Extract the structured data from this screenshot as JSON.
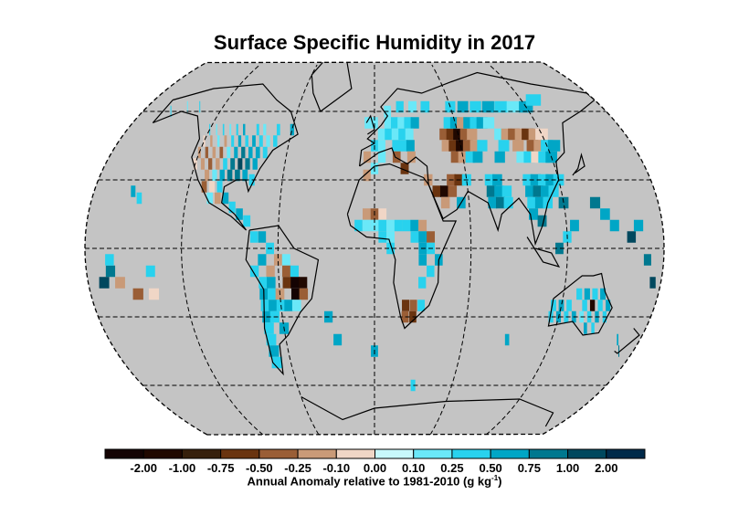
{
  "title": "Surface Specific Humidity in 2017",
  "colorbar": {
    "label": "Annual Anomaly relative to 1981-2010 (g kg",
    "unit_sup": "-1",
    "label_end": ")",
    "ticks": [
      "-2.00",
      "-1.00",
      "-0.75",
      "-0.50",
      "-0.25",
      "-0.10",
      "0.00",
      "0.10",
      "0.25",
      "0.50",
      "0.75",
      "1.00",
      "2.00"
    ],
    "colors": [
      "#140303",
      "#200800",
      "#36200c",
      "#6a3410",
      "#9a5e36",
      "#c99a78",
      "#f0d6c6",
      "#c8f8fb",
      "#6ae8f8",
      "#28d2ee",
      "#00a6c6",
      "#00788f",
      "#00485e",
      "#002a4a"
    ]
  },
  "map": {
    "background": "#c4c4c4",
    "gridlines_lon": [
      -120,
      -60,
      0,
      60,
      120
    ],
    "gridlines_lat": [
      -60,
      -30,
      0,
      30,
      60
    ],
    "cells": [
      [
        -120,
        52,
        0.25
      ],
      [
        -115,
        52,
        0.1
      ],
      [
        -110,
        52,
        0.25
      ],
      [
        -105,
        52,
        0.1
      ],
      [
        -100,
        52,
        0.25
      ],
      [
        -95,
        52,
        0.5
      ],
      [
        -85,
        52,
        0.25
      ],
      [
        -80,
        52,
        0.1
      ],
      [
        -70,
        52,
        0.25
      ],
      [
        -60,
        52,
        0.5
      ],
      [
        -120,
        47,
        -0.1
      ],
      [
        -115,
        47,
        -0.25
      ],
      [
        -110,
        47,
        0.1
      ],
      [
        -105,
        47,
        -0.25
      ],
      [
        -100,
        47,
        0.25
      ],
      [
        -95,
        47,
        0.5
      ],
      [
        -90,
        47,
        0.25
      ],
      [
        -85,
        47,
        0.5
      ],
      [
        -80,
        47,
        0.25
      ],
      [
        -75,
        47,
        0.1
      ],
      [
        -70,
        47,
        0.25
      ],
      [
        -120,
        42,
        -0.25
      ],
      [
        -115,
        42,
        -0.5
      ],
      [
        -110,
        42,
        -0.25
      ],
      [
        -105,
        42,
        -0.5
      ],
      [
        -100,
        42,
        0.1
      ],
      [
        -95,
        42,
        0.5
      ],
      [
        -90,
        42,
        0.75
      ],
      [
        -85,
        42,
        0.5
      ],
      [
        -80,
        42,
        0.5
      ],
      [
        -75,
        42,
        0.25
      ],
      [
        -120,
        37,
        -0.1
      ],
      [
        -115,
        37,
        -0.25
      ],
      [
        -110,
        37,
        -0.5
      ],
      [
        -105,
        37,
        -0.25
      ],
      [
        -100,
        37,
        0.25
      ],
      [
        -95,
        37,
        0.75
      ],
      [
        -90,
        37,
        1.0
      ],
      [
        -85,
        37,
        0.75
      ],
      [
        -80,
        37,
        0.5
      ],
      [
        -110,
        32,
        -0.25
      ],
      [
        -105,
        32,
        0.1
      ],
      [
        -100,
        32,
        0.5
      ],
      [
        -95,
        32,
        0.75
      ],
      [
        -90,
        32,
        0.75
      ],
      [
        -85,
        32,
        0.5
      ],
      [
        -80,
        30,
        0.25
      ],
      [
        -110,
        27,
        -0.5
      ],
      [
        -105,
        27,
        -0.1
      ],
      [
        -100,
        27,
        0.25
      ],
      [
        -95,
        22,
        0.5
      ],
      [
        -100,
        22,
        -0.25
      ],
      [
        -105,
        22,
        0.1
      ],
      [
        -90,
        18,
        0.25
      ],
      [
        -85,
        15,
        0.5
      ],
      [
        -80,
        12,
        0.25
      ],
      [
        -155,
        25,
        0.5
      ],
      [
        -150,
        22,
        0.25
      ],
      [
        -160,
        60,
        0.25
      ],
      [
        -150,
        62,
        0.1
      ],
      [
        -140,
        62,
        0.25
      ],
      [
        -75,
        5,
        0.25
      ],
      [
        -70,
        5,
        0.5
      ],
      [
        -65,
        0,
        0.25
      ],
      [
        -60,
        -5,
        -0.25
      ],
      [
        -55,
        -5,
        0.1
      ],
      [
        -70,
        -5,
        0.5
      ],
      [
        -75,
        -10,
        0.25
      ],
      [
        -65,
        -10,
        -0.25
      ],
      [
        -55,
        -10,
        -0.5
      ],
      [
        -50,
        -10,
        0.25
      ],
      [
        -70,
        -15,
        0.25
      ],
      [
        -65,
        -15,
        0.5
      ],
      [
        -55,
        -15,
        -0.75
      ],
      [
        -50,
        -15,
        -2.5
      ],
      [
        -45,
        -15,
        -1.5
      ],
      [
        -70,
        -20,
        0.5
      ],
      [
        -65,
        -20,
        0.25
      ],
      [
        -60,
        -20,
        -0.25
      ],
      [
        -50,
        -20,
        -2.5
      ],
      [
        -45,
        -20,
        -0.5
      ],
      [
        -70,
        -25,
        0.25
      ],
      [
        -65,
        -25,
        0.5
      ],
      [
        -60,
        -25,
        0.25
      ],
      [
        -55,
        -25,
        0.5
      ],
      [
        -50,
        -25,
        0.1
      ],
      [
        -70,
        -30,
        0.5
      ],
      [
        -65,
        -30,
        0.25
      ],
      [
        -60,
        -35,
        0.5
      ],
      [
        -70,
        -35,
        0.25
      ],
      [
        -70,
        -40,
        0.25
      ],
      [
        -70,
        -45,
        0.5
      ],
      [
        -70,
        -50,
        0.25
      ],
      [
        -165,
        -10,
        0.75
      ],
      [
        -170,
        -15,
        1.0
      ],
      [
        -160,
        -15,
        -0.25
      ],
      [
        -150,
        -20,
        -0.5
      ],
      [
        -140,
        -20,
        -0.1
      ],
      [
        -165,
        -5,
        0.25
      ],
      [
        -140,
        -10,
        0.25
      ],
      [
        -5,
        55,
        0.1
      ],
      [
        0,
        55,
        0.1
      ],
      [
        10,
        55,
        0.1
      ],
      [
        15,
        55,
        0.25
      ],
      [
        20,
        55,
        0.1
      ],
      [
        25,
        55,
        0.25
      ],
      [
        30,
        55,
        0.5
      ],
      [
        5,
        50,
        0.1
      ],
      [
        10,
        50,
        0.25
      ],
      [
        15,
        50,
        0.1
      ],
      [
        20,
        50,
        0.25
      ],
      [
        25,
        50,
        0.1
      ],
      [
        0,
        45,
        0.25
      ],
      [
        5,
        45,
        0.1
      ],
      [
        15,
        45,
        0.25
      ],
      [
        20,
        45,
        0.25
      ],
      [
        25,
        45,
        0.5
      ],
      [
        -5,
        40,
        -0.25
      ],
      [
        5,
        40,
        0.1
      ],
      [
        15,
        40,
        -0.5
      ],
      [
        25,
        40,
        -0.25
      ],
      [
        20,
        35,
        -0.75
      ],
      [
        10,
        60,
        0.1
      ],
      [
        20,
        62,
        0.25
      ],
      [
        30,
        62,
        0.1
      ],
      [
        40,
        62,
        0.25
      ],
      [
        0,
        35,
        0.1
      ],
      [
        -5,
        32,
        -0.25
      ],
      [
        -5,
        15,
        -0.25
      ],
      [
        0,
        15,
        -0.5
      ],
      [
        5,
        15,
        -0.1
      ],
      [
        -10,
        10,
        0.25
      ],
      [
        -5,
        10,
        0.1
      ],
      [
        0,
        10,
        0.1
      ],
      [
        5,
        10,
        0.25
      ],
      [
        10,
        10,
        0.1
      ],
      [
        15,
        10,
        0.25
      ],
      [
        20,
        10,
        0.25
      ],
      [
        25,
        10,
        0.5
      ],
      [
        30,
        10,
        -0.25
      ],
      [
        5,
        5,
        0.25
      ],
      [
        10,
        5,
        0.1
      ],
      [
        25,
        5,
        0.25
      ],
      [
        30,
        5,
        0.5
      ],
      [
        35,
        5,
        -0.5
      ],
      [
        10,
        0,
        0.25
      ],
      [
        30,
        0,
        0.5
      ],
      [
        35,
        0,
        0.25
      ],
      [
        30,
        -5,
        0.5
      ],
      [
        35,
        -10,
        0.25
      ],
      [
        40,
        -5,
        0.5
      ],
      [
        30,
        -15,
        0.25
      ],
      [
        20,
        -25,
        -0.75
      ],
      [
        25,
        -25,
        -0.5
      ],
      [
        20,
        -30,
        -0.5
      ],
      [
        25,
        -30,
        -0.75
      ],
      [
        30,
        -25,
        0.25
      ],
      [
        40,
        25,
        -0.75
      ],
      [
        45,
        25,
        -1.5
      ],
      [
        50,
        25,
        -0.5
      ],
      [
        45,
        20,
        -0.25
      ],
      [
        55,
        20,
        0.5
      ],
      [
        50,
        30,
        -0.5
      ],
      [
        55,
        30,
        -0.75
      ],
      [
        60,
        30,
        0.25
      ],
      [
        35,
        30,
        -0.25
      ],
      [
        50,
        50,
        -0.5
      ],
      [
        55,
        50,
        -0.75
      ],
      [
        60,
        50,
        -1.5
      ],
      [
        65,
        50,
        -0.5
      ],
      [
        70,
        50,
        -0.25
      ],
      [
        50,
        45,
        -0.25
      ],
      [
        55,
        45,
        -0.75
      ],
      [
        60,
        45,
        -1.5
      ],
      [
        65,
        45,
        -0.5
      ],
      [
        70,
        45,
        -0.25
      ],
      [
        75,
        45,
        0.25
      ],
      [
        55,
        40,
        -0.5
      ],
      [
        60,
        40,
        -0.25
      ],
      [
        65,
        40,
        0.25
      ],
      [
        70,
        40,
        0.5
      ],
      [
        55,
        55,
        0.25
      ],
      [
        60,
        55,
        0.5
      ],
      [
        65,
        55,
        -0.25
      ],
      [
        70,
        55,
        0.5
      ],
      [
        75,
        55,
        0.25
      ],
      [
        80,
        55,
        0.5
      ],
      [
        85,
        55,
        0.1
      ],
      [
        60,
        62,
        0.25
      ],
      [
        70,
        62,
        0.5
      ],
      [
        80,
        62,
        0.25
      ],
      [
        90,
        62,
        0.5
      ],
      [
        100,
        62,
        0.25
      ],
      [
        110,
        62,
        0.1
      ],
      [
        120,
        62,
        0.5
      ],
      [
        130,
        65,
        0.25
      ],
      [
        90,
        50,
        0.1
      ],
      [
        95,
        50,
        -0.25
      ],
      [
        100,
        50,
        -0.5
      ],
      [
        105,
        50,
        -0.25
      ],
      [
        110,
        50,
        -0.75
      ],
      [
        115,
        50,
        -0.25
      ],
      [
        120,
        50,
        -0.1
      ],
      [
        90,
        45,
        0.25
      ],
      [
        100,
        45,
        -0.25
      ],
      [
        110,
        45,
        -0.5
      ],
      [
        115,
        45,
        -0.25
      ],
      [
        120,
        45,
        0.25
      ],
      [
        125,
        45,
        0.5
      ],
      [
        100,
        40,
        0.1
      ],
      [
        105,
        40,
        0.25
      ],
      [
        110,
        40,
        -0.1
      ],
      [
        115,
        40,
        0.25
      ],
      [
        120,
        40,
        0.5
      ],
      [
        85,
        40,
        0.5
      ],
      [
        75,
        30,
        0.25
      ],
      [
        80,
        30,
        0.5
      ],
      [
        75,
        25,
        0.75
      ],
      [
        80,
        25,
        0.5
      ],
      [
        85,
        25,
        0.25
      ],
      [
        75,
        20,
        0.5
      ],
      [
        80,
        20,
        0.75
      ],
      [
        85,
        20,
        0.25
      ],
      [
        100,
        30,
        0.25
      ],
      [
        105,
        30,
        0.5
      ],
      [
        110,
        30,
        0.25
      ],
      [
        115,
        30,
        0.5
      ],
      [
        120,
        30,
        0.25
      ],
      [
        100,
        25,
        0.5
      ],
      [
        105,
        25,
        0.75
      ],
      [
        110,
        25,
        0.5
      ],
      [
        115,
        25,
        0.25
      ],
      [
        100,
        20,
        0.25
      ],
      [
        105,
        20,
        0.5
      ],
      [
        110,
        20,
        0.25
      ],
      [
        120,
        20,
        0.75
      ],
      [
        100,
        15,
        0.5
      ],
      [
        105,
        12,
        0.75
      ],
      [
        125,
        10,
        0.5
      ],
      [
        120,
        5,
        0.25
      ],
      [
        115,
        0,
        0.75
      ],
      [
        140,
        20,
        0.75
      ],
      [
        150,
        10,
        0.5
      ],
      [
        160,
        5,
        1.0
      ],
      [
        170,
        -5,
        0.75
      ],
      [
        175,
        -15,
        1.0
      ],
      [
        165,
        10,
        0.5
      ],
      [
        145,
        15,
        0.5
      ],
      [
        115,
        -25,
        0.25
      ],
      [
        120,
        -25,
        0.5
      ],
      [
        125,
        -25,
        0.25
      ],
      [
        130,
        -20,
        0.25
      ],
      [
        135,
        -20,
        0.5
      ],
      [
        140,
        -20,
        0.25
      ],
      [
        145,
        -20,
        0.5
      ],
      [
        115,
        -30,
        0.25
      ],
      [
        120,
        -30,
        0.5
      ],
      [
        125,
        -30,
        0.25
      ],
      [
        130,
        -30,
        0.5
      ],
      [
        135,
        -25,
        0.25
      ],
      [
        140,
        -25,
        -1.5
      ],
      [
        145,
        -25,
        0.25
      ],
      [
        150,
        -25,
        0.5
      ],
      [
        135,
        -30,
        0.1
      ],
      [
        140,
        -30,
        0.25
      ],
      [
        145,
        -30,
        0.5
      ],
      [
        150,
        -30,
        0.25
      ],
      [
        140,
        -35,
        0.5
      ],
      [
        145,
        -35,
        0.25
      ],
      [
        165,
        -40,
        0.5
      ],
      [
        170,
        -45,
        0.75
      ],
      [
        -30,
        -30,
        0.5
      ],
      [
        -25,
        -40,
        0.5
      ],
      [
        0,
        -45,
        0.5
      ],
      [
        30,
        -60,
        0.25
      ],
      [
        90,
        -40,
        0.5
      ]
    ]
  }
}
